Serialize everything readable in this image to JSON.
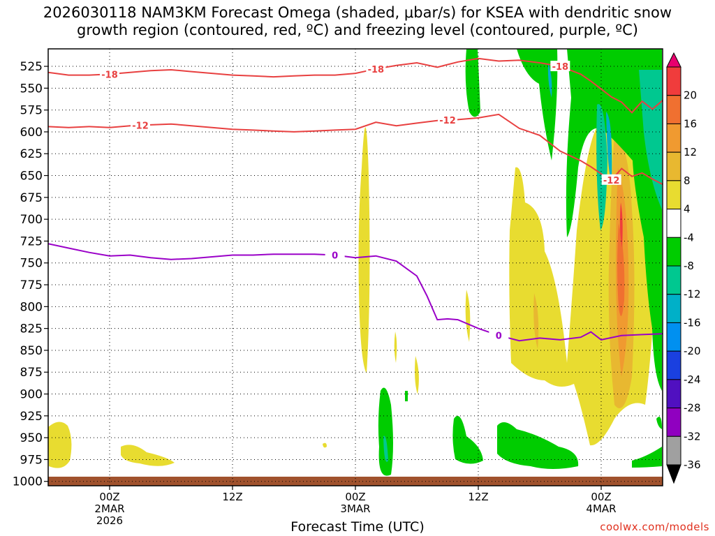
{
  "title": "2026030118 NAM3KM Forecast Omega (shaded, μbar/s) for KSEA with dendritic snow\ngrowth region (contoured, red, ºC) and freezing level (contoured, purple, ºC)",
  "xlabel": "Forecast Time (UTC)",
  "credit": "coolwx.com/models",
  "chart_data": {
    "type": "heatmap",
    "y_axis": {
      "unit": "hPa",
      "range": [
        1005,
        505
      ],
      "ticks": [
        525,
        550,
        575,
        600,
        625,
        650,
        675,
        700,
        725,
        750,
        775,
        800,
        825,
        850,
        875,
        900,
        925,
        950,
        975,
        1000
      ]
    },
    "x_axis": {
      "unit": "forecast hour",
      "range": [
        -6,
        54
      ],
      "ticks": [
        {
          "hour": 0,
          "lines": [
            "00Z",
            "2MAR",
            "2026"
          ]
        },
        {
          "hour": 12,
          "lines": [
            "12Z"
          ]
        },
        {
          "hour": 24,
          "lines": [
            "00Z",
            "3MAR"
          ]
        },
        {
          "hour": 36,
          "lines": [
            "12Z"
          ]
        },
        {
          "hour": 48,
          "lines": [
            "00Z",
            "4MAR"
          ]
        }
      ]
    },
    "grid": "dotted",
    "colorbar": {
      "labels": [
        "20",
        "16",
        "12",
        "8",
        "4",
        "-4",
        "-8",
        "-12",
        "-16",
        "-20",
        "-24",
        "-28",
        "-32",
        "-36"
      ],
      "colors": [
        "#e8006e",
        "#f03c3c",
        "#f07030",
        "#f09a30",
        "#e8b830",
        "#e8dc30",
        "#ffffff",
        "#00cc00",
        "#00c890",
        "#00b0c8",
        "#0090f0",
        "#1a40e0",
        "#5010c0",
        "#9000c0",
        "#a0a0a0",
        "#000000"
      ]
    },
    "contours": [
      {
        "level": -18,
        "label": "-18",
        "color": "#e84040",
        "points": [
          [
            -6,
            532
          ],
          [
            -4,
            535
          ],
          [
            -2,
            535
          ],
          [
            0,
            534
          ],
          [
            2,
            532
          ],
          [
            4,
            530
          ],
          [
            6,
            529
          ],
          [
            8,
            531
          ],
          [
            10,
            533
          ],
          [
            12,
            535
          ],
          [
            14,
            536
          ],
          [
            16,
            537
          ],
          [
            18,
            536
          ],
          [
            20,
            535
          ],
          [
            22,
            535
          ],
          [
            24,
            533
          ],
          [
            26,
            528
          ],
          [
            28,
            524
          ],
          [
            30,
            521
          ],
          [
            32,
            526
          ],
          [
            34,
            520
          ],
          [
            36,
            516
          ],
          [
            38,
            519
          ],
          [
            40,
            518
          ],
          [
            42,
            521
          ],
          [
            44,
            525
          ],
          [
            46,
            534
          ],
          [
            47,
            542
          ],
          [
            48,
            551
          ],
          [
            49,
            560
          ],
          [
            50,
            566
          ],
          [
            51,
            578
          ],
          [
            52,
            565
          ],
          [
            53,
            574
          ],
          [
            54,
            564
          ]
        ]
      },
      {
        "level": -12,
        "label": "-12",
        "color": "#e84040",
        "points": [
          [
            -6,
            594
          ],
          [
            -4,
            595
          ],
          [
            -2,
            594
          ],
          [
            0,
            595
          ],
          [
            2,
            593
          ],
          [
            4,
            592
          ],
          [
            6,
            591
          ],
          [
            8,
            593
          ],
          [
            10,
            595
          ],
          [
            12,
            597
          ],
          [
            14,
            598
          ],
          [
            16,
            599
          ],
          [
            18,
            600
          ],
          [
            20,
            599
          ],
          [
            22,
            598
          ],
          [
            24,
            597
          ],
          [
            26,
            589
          ],
          [
            28,
            593
          ],
          [
            30,
            590
          ],
          [
            32,
            587
          ],
          [
            34,
            586
          ],
          [
            36,
            584
          ],
          [
            38,
            580
          ],
          [
            40,
            596
          ],
          [
            42,
            604
          ],
          [
            44,
            622
          ],
          [
            46,
            633
          ],
          [
            47,
            640
          ],
          [
            48,
            648
          ],
          [
            49,
            655
          ],
          [
            50,
            642
          ],
          [
            51,
            651
          ],
          [
            52,
            647
          ],
          [
            53,
            654
          ],
          [
            54,
            660
          ]
        ]
      },
      {
        "level": 0,
        "label": "0",
        "color": "#9a00c8",
        "points": [
          [
            -6,
            728
          ],
          [
            -4,
            733
          ],
          [
            -2,
            738
          ],
          [
            0,
            742
          ],
          [
            2,
            741
          ],
          [
            4,
            744
          ],
          [
            6,
            746
          ],
          [
            8,
            745
          ],
          [
            10,
            743
          ],
          [
            12,
            741
          ],
          [
            14,
            741
          ],
          [
            16,
            740
          ],
          [
            18,
            740
          ],
          [
            20,
            740
          ],
          [
            22,
            741
          ],
          [
            24,
            744
          ],
          [
            26,
            742
          ],
          [
            28,
            748
          ],
          [
            30,
            765
          ],
          [
            31,
            788
          ],
          [
            32,
            815
          ],
          [
            33,
            814
          ],
          [
            34,
            815
          ],
          [
            36,
            825
          ],
          [
            38,
            833
          ],
          [
            40,
            839
          ],
          [
            42,
            836
          ],
          [
            44,
            838
          ],
          [
            46,
            835
          ],
          [
            47,
            829
          ],
          [
            48,
            838
          ],
          [
            50,
            833
          ],
          [
            52,
            832
          ],
          [
            54,
            831
          ]
        ]
      }
    ]
  }
}
